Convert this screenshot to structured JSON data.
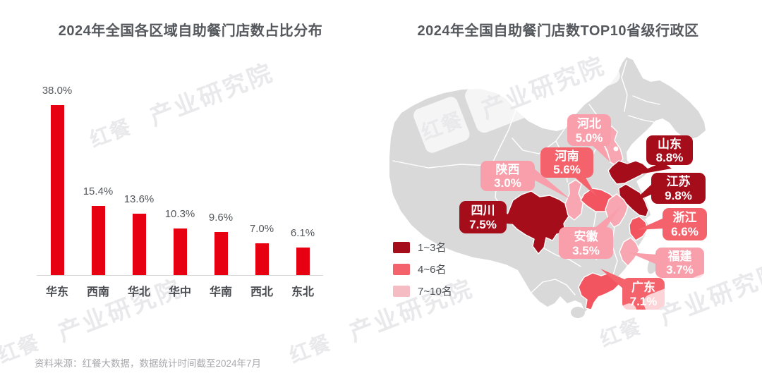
{
  "page": {
    "background": "#ffffff",
    "source_note": "资料来源：红餐大数据，数据统计时间截至2024年7月"
  },
  "watermark": {
    "logo": "红餐",
    "text": "产业研究院"
  },
  "colors": {
    "bar_red": "#E60012",
    "title_gray": "#55585D",
    "map_base_gray": "#D9D9D9",
    "tier1_dark_red": "#A50D1B",
    "tier2_red": "#F4636C",
    "tier3_pink": "#F99FAB",
    "footer_gray": "#A9A9AD"
  },
  "chart_data": [
    {
      "type": "bar",
      "title": "2024年全国各区域自助餐门店数占比分布",
      "categories": [
        "华东",
        "西南",
        "华北",
        "华中",
        "华南",
        "西北",
        "东北"
      ],
      "values": [
        38.0,
        15.4,
        13.6,
        10.3,
        9.6,
        7.0,
        6.1
      ],
      "labels": [
        "38.0%",
        "15.4%",
        "13.6%",
        "10.3%",
        "9.6%",
        "7.0%",
        "6.1%"
      ],
      "unit": "%",
      "ylim": [
        0,
        40
      ],
      "grid": false,
      "bar_color": "#E60012"
    },
    {
      "type": "map",
      "title": "2024年全国自助餐门店数TOP10省级行政区",
      "legend_position": "bottom-left",
      "legend": [
        {
          "label": "1~3名",
          "color": "#A50D1B"
        },
        {
          "label": "4~6名",
          "color": "#F4636C"
        },
        {
          "label": "7~10名",
          "color": "#F6BCC4"
        }
      ],
      "regions": [
        {
          "rank": 1,
          "name": "江苏",
          "value": "9.8%",
          "tier": "1~3名"
        },
        {
          "rank": 2,
          "name": "山东",
          "value": "8.8%",
          "tier": "1~3名"
        },
        {
          "rank": 3,
          "name": "四川",
          "value": "7.5%",
          "tier": "1~3名"
        },
        {
          "rank": 4,
          "name": "广东",
          "value": "7.1%",
          "tier": "4~6名"
        },
        {
          "rank": 5,
          "name": "浙江",
          "value": "6.6%",
          "tier": "4~6名"
        },
        {
          "rank": 6,
          "name": "河南",
          "value": "5.6%",
          "tier": "4~6名"
        },
        {
          "rank": 7,
          "name": "河北",
          "value": "5.0%",
          "tier": "7~10名"
        },
        {
          "rank": 8,
          "name": "福建",
          "value": "3.7%",
          "tier": "7~10名"
        },
        {
          "rank": 9,
          "name": "安徽",
          "value": "3.5%",
          "tier": "7~10名"
        },
        {
          "rank": 10,
          "name": "陕西",
          "value": "3.0%",
          "tier": "7~10名"
        }
      ]
    }
  ]
}
